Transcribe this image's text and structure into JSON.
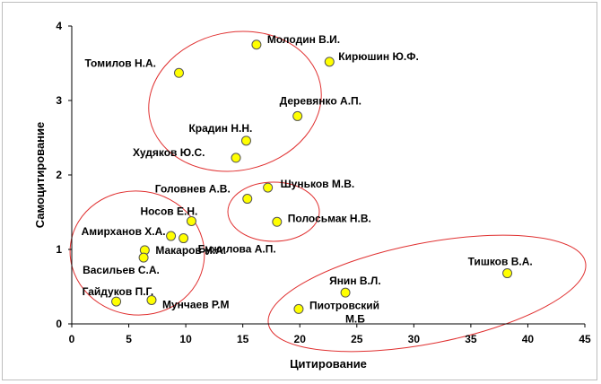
{
  "chart_data": {
    "type": "scatter",
    "title": "",
    "xlabel": "Цитирование",
    "ylabel": "Самоцитирование",
    "xlim": [
      0,
      45
    ],
    "ylim": [
      0,
      4
    ],
    "xticks": [
      "0",
      "5",
      "10",
      "15",
      "20",
      "25",
      "30",
      "35",
      "40",
      "45"
    ],
    "yticks": [
      "0",
      "1",
      "2",
      "3",
      "4"
    ],
    "grid": false,
    "point_color": "#ffff00",
    "point_stroke": "#555555",
    "ellipse_color": "#e03030",
    "points": [
      {
        "label": "Молодин В.И.",
        "x": 16.2,
        "y": 3.75
      },
      {
        "label": "Кирюшин Ю.Ф.",
        "x": 22.6,
        "y": 3.52
      },
      {
        "label": "Томилов Н.А.",
        "x": 9.4,
        "y": 3.37
      },
      {
        "label": "Деревянко А.П.",
        "x": 19.8,
        "y": 2.79
      },
      {
        "label": "Крадин Н.Н.",
        "x": 15.3,
        "y": 2.46
      },
      {
        "label": "Худяков Ю.С.",
        "x": 14.4,
        "y": 2.23
      },
      {
        "label": "Шуньков М.В.",
        "x": 17.2,
        "y": 1.83
      },
      {
        "label": "Головнев А.В.",
        "x": 15.4,
        "y": 1.68
      },
      {
        "label": "Носов Е.Н.",
        "x": 10.5,
        "y": 1.38
      },
      {
        "label": "Полосьмак Н.В.",
        "x": 18.0,
        "y": 1.37
      },
      {
        "label": "Амирханов Х.А.",
        "x": 8.7,
        "y": 1.18
      },
      {
        "label": "Бужилова А.П.",
        "x": 9.8,
        "y": 1.15
      },
      {
        "label": "Макаров Н.А.",
        "x": 6.4,
        "y": 0.99
      },
      {
        "label": "Васильев С.А.",
        "x": 6.3,
        "y": 0.89
      },
      {
        "label": "Тишков В.А.",
        "x": 38.2,
        "y": 0.68
      },
      {
        "label": "Янин В.Л.",
        "x": 24.0,
        "y": 0.42
      },
      {
        "label": "Гайдуков П.Г.",
        "x": 3.9,
        "y": 0.3
      },
      {
        "label": "Мунчаев Р.М",
        "x": 7.0,
        "y": 0.32
      },
      {
        "label": "Пиотровский М.Б",
        "x": 19.9,
        "y": 0.2
      }
    ]
  }
}
